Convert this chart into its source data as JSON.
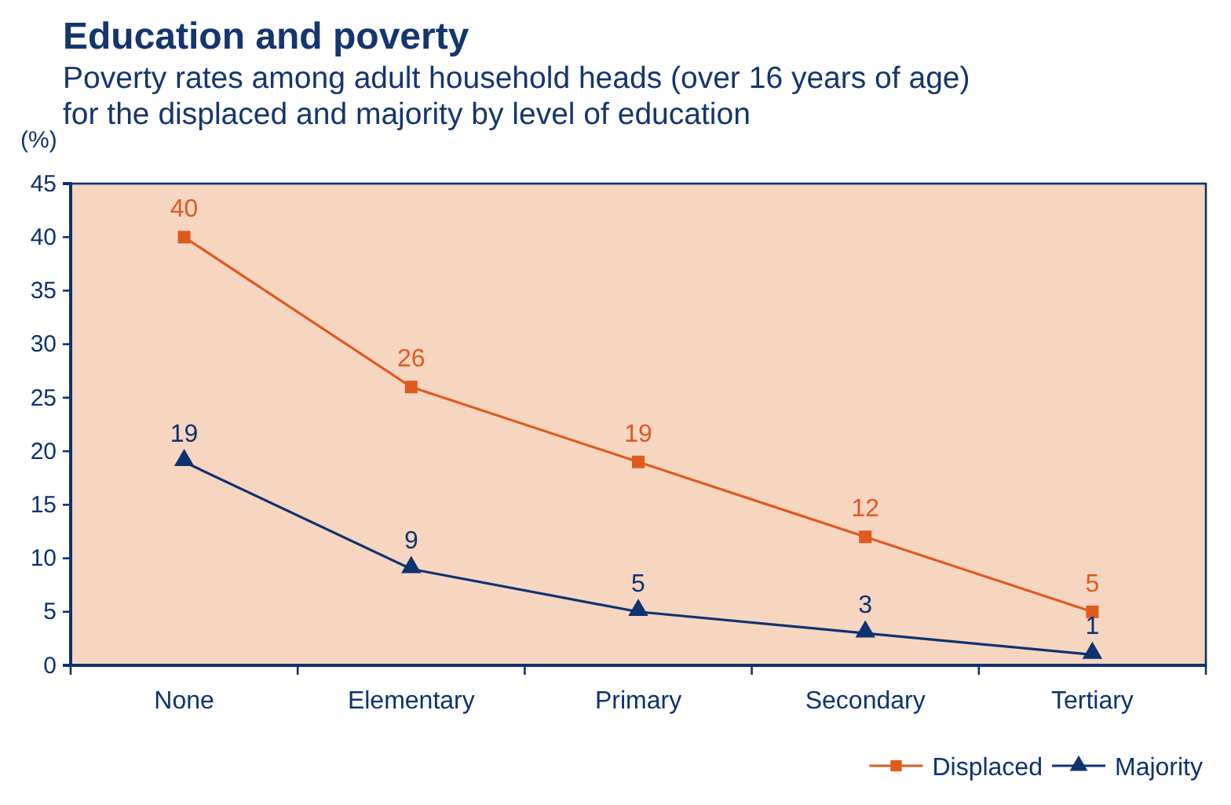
{
  "chart_data": {
    "type": "line",
    "title": "Education and poverty",
    "subtitle": "Poverty rates among adult household heads (over 16 years of age)\nfor the displaced and majority by level of education",
    "ylabel": "(%)",
    "categories": [
      "None",
      "Elementary",
      "Primary",
      "Secondary",
      "Tertiary"
    ],
    "series": [
      {
        "name": "Displaced",
        "color": "#e05a1e",
        "marker": "square",
        "values": [
          40,
          26,
          19,
          12,
          5
        ]
      },
      {
        "name": "Majority",
        "color": "#0d3270",
        "marker": "triangle",
        "values": [
          19,
          9,
          5,
          3,
          1
        ]
      }
    ],
    "ylim": [
      0,
      45
    ],
    "yticks": [
      0,
      5,
      10,
      15,
      20,
      25,
      30,
      35,
      40,
      45
    ],
    "data_labels": true,
    "legend": "bottom right"
  }
}
